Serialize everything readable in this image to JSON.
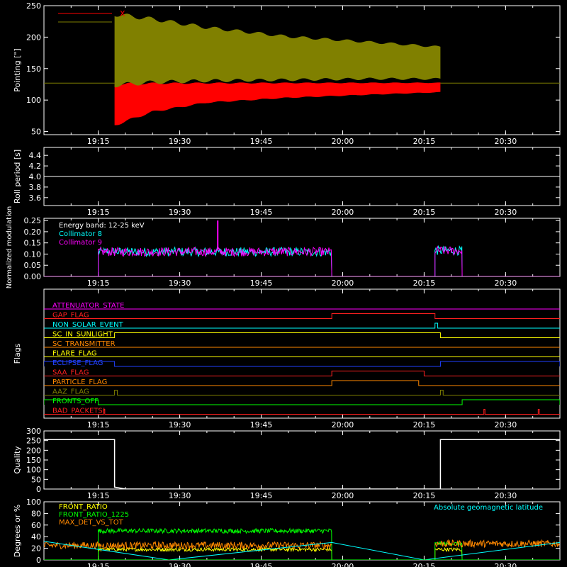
{
  "time_axis": {
    "start": "19:05",
    "end": "20:40",
    "ticks": [
      "19:15",
      "19:30",
      "19:45",
      "20:00",
      "20:15",
      "20:30"
    ]
  },
  "colors": {
    "background": "#000000",
    "axes": "#ffffff",
    "x": "#ff0000",
    "y": "#808000",
    "collimator8": "#00ffff",
    "collimator9": "#ff00ff",
    "front_ratio": "#ffff00",
    "front_ratio_1225": "#00ff00",
    "max_det_vs_tot": "#ff8800",
    "geomag": "#00ffff"
  },
  "chart_data": [
    {
      "id": "pointing",
      "type": "line",
      "ylabel": "Pointing [\"]",
      "ylim": [
        45,
        250
      ],
      "yticks": [
        50,
        100,
        150,
        200,
        250
      ],
      "legend": [
        {
          "name": "X",
          "color": "#ff0000"
        },
        {
          "name": "Y",
          "color": "#808000"
        }
      ],
      "baseline": 127,
      "active_range": [
        "19:18",
        "20:18"
      ],
      "series": [
        {
          "name": "X",
          "color": "#ff0000",
          "envelope": [
            {
              "t": "19:18",
              "min": 58,
              "max": 128
            },
            {
              "t": "19:25",
              "min": 80,
              "max": 128
            },
            {
              "t": "19:35",
              "min": 95,
              "max": 128
            },
            {
              "t": "19:50",
              "min": 103,
              "max": 128
            },
            {
              "t": "20:05",
              "min": 108,
              "max": 128
            },
            {
              "t": "20:18",
              "min": 112,
              "max": 128
            }
          ]
        },
        {
          "name": "Y",
          "color": "#808000",
          "envelope": [
            {
              "t": "19:18",
              "min": 120,
              "max": 240
            },
            {
              "t": "19:25",
              "min": 125,
              "max": 232
            },
            {
              "t": "19:35",
              "min": 128,
              "max": 218
            },
            {
              "t": "19:50",
              "min": 130,
              "max": 203
            },
            {
              "t": "20:05",
              "min": 132,
              "max": 194
            },
            {
              "t": "20:18",
              "min": 132,
              "max": 186
            }
          ]
        }
      ]
    },
    {
      "id": "roll",
      "type": "line",
      "ylabel": "Roll period [s]",
      "ylim": [
        3.45,
        4.55
      ],
      "yticks": [
        "3.6",
        "3.8",
        "4.0",
        "4.2",
        "4.4"
      ],
      "series": [
        {
          "name": "Roll period",
          "color": "#ffffff",
          "points": [
            {
              "t": "19:05",
              "y": 4.0
            },
            {
              "t": "20:40",
              "y": 4.0
            }
          ]
        }
      ]
    },
    {
      "id": "modulation",
      "type": "line",
      "ylabel": "Normalized modulation",
      "ylim": [
        0,
        0.26
      ],
      "yticks": [
        "0.00",
        "0.05",
        "0.10",
        "0.15",
        "0.20",
        "0.25"
      ],
      "annotation": "Energy band: 12-25 keV",
      "legend": [
        {
          "name": "Collimator 8",
          "color": "#00ffff"
        },
        {
          "name": "Collimator 9",
          "color": "#ff00ff"
        }
      ],
      "intervals": [
        {
          "start": "19:15",
          "end": "19:58",
          "mean": 0.11,
          "noise": 0.02
        },
        {
          "start": "20:17",
          "end": "20:22",
          "mean": 0.115,
          "noise": 0.02
        }
      ],
      "spikes": [
        {
          "t": "19:37",
          "y": 0.25
        }
      ]
    },
    {
      "id": "flags",
      "type": "line",
      "ylabel": "Flags",
      "flags": [
        {
          "name": "ATTENUATOR_STATE",
          "color": "#ff00ff",
          "segments": []
        },
        {
          "name": "GAP_FLAG",
          "color": "#ff2020",
          "segments": [
            [
              "19:58",
              "20:17"
            ]
          ]
        },
        {
          "name": "NON_SOLAR_EVENT",
          "color": "#00ffff",
          "segments": [
            [
              "20:17",
              "20:17.5"
            ]
          ]
        },
        {
          "name": "SC_IN_SUNLIGHT",
          "color": "#ffff00",
          "segments": [
            [
              "19:18",
              "20:18"
            ]
          ]
        },
        {
          "name": "SC_TRANSMITTER",
          "color": "#ff8800",
          "segments": []
        },
        {
          "name": "FLARE_FLAG",
          "color": "#ffff00",
          "segments": []
        },
        {
          "name": "ECLIPSE_FLAG",
          "color": "#2040ff",
          "segments": [
            [
              "19:05",
              "19:18"
            ],
            [
              "20:18",
              "20:40"
            ]
          ]
        },
        {
          "name": "SAA_FLAG",
          "color": "#ff2020",
          "segments": [
            [
              "19:58",
              "20:15"
            ]
          ]
        },
        {
          "name": "PARTICLE_FLAG",
          "color": "#ff8800",
          "segments": [
            [
              "19:58",
              "20:14"
            ]
          ]
        },
        {
          "name": "AAZ_FLAG",
          "color": "#808000",
          "segments": [
            [
              "19:18",
              "19:18.5"
            ],
            [
              "20:18",
              "20:18.5"
            ]
          ]
        },
        {
          "name": "FRONTS_OFF",
          "color": "#00ff00",
          "segments": [
            [
              "19:05",
              "19:15"
            ],
            [
              "20:22",
              "20:40"
            ]
          ]
        },
        {
          "name": "BAD_PACKETS!",
          "color": "#ff2020",
          "segments": [
            [
              "19:16",
              "19:16.2"
            ],
            [
              "20:26",
              "20:26.2"
            ],
            [
              "20:36",
              "20:36.2"
            ]
          ]
        }
      ]
    },
    {
      "id": "quality",
      "type": "line",
      "ylabel": "Quality",
      "ylim": [
        0,
        300
      ],
      "yticks": [
        0,
        50,
        100,
        150,
        200,
        250,
        300
      ],
      "series": [
        {
          "name": "Quality",
          "color": "#ffffff",
          "points": [
            {
              "t": "19:05",
              "y": 255
            },
            {
              "t": "19:18",
              "y": 255
            },
            {
              "t": "19:18",
              "y": 10
            },
            {
              "t": "19:19",
              "y": 5
            },
            {
              "t": "19:20",
              "y": 0
            },
            {
              "t": "20:18",
              "y": 0
            },
            {
              "t": "20:18",
              "y": 255
            },
            {
              "t": "20:40",
              "y": 255
            }
          ]
        }
      ]
    },
    {
      "id": "ratios",
      "type": "line",
      "ylabel": "Degrees or %",
      "ylim": [
        0,
        100
      ],
      "yticks": [
        0,
        20,
        40,
        60,
        80,
        100
      ],
      "legend": [
        {
          "name": "FRONT_RATIO",
          "color": "#ffff00"
        },
        {
          "name": "FRONT_RATIO_1225",
          "color": "#00ff00"
        },
        {
          "name": "MAX_DET_VS_TOT",
          "color": "#ff8800"
        }
      ],
      "geomag_label": "Absolute geomagnetic latitude",
      "series": [
        {
          "name": "FRONT_RATIO",
          "color": "#ffff00",
          "intervals": [
            {
              "start": "19:15",
              "end": "19:58",
              "mean": 18,
              "noise": 3
            },
            {
              "start": "20:17",
              "end": "20:22",
              "mean": 18,
              "noise": 3
            }
          ]
        },
        {
          "name": "FRONT_RATIO_1225",
          "color": "#00ff00",
          "intervals": [
            {
              "start": "19:15",
              "end": "19:58",
              "mean": 50,
              "noise": 4
            },
            {
              "start": "20:17",
              "end": "20:22",
              "mean": 28,
              "noise": 3
            }
          ]
        },
        {
          "name": "MAX_DET_VS_TOT",
          "color": "#ff8800",
          "intervals": [
            {
              "start": "19:05",
              "end": "19:58",
              "mean": 25,
              "noise": 6
            },
            {
              "start": "20:17",
              "end": "20:40",
              "mean": 28,
              "noise": 6
            }
          ]
        },
        {
          "name": "Absolute geomagnetic latitude",
          "color": "#00ffff",
          "points": [
            {
              "t": "19:05",
              "y": 32
            },
            {
              "t": "19:28",
              "y": 0
            },
            {
              "t": "19:58",
              "y": 30
            },
            {
              "t": "20:15",
              "y": 0
            },
            {
              "t": "20:40",
              "y": 30
            }
          ]
        }
      ]
    }
  ]
}
